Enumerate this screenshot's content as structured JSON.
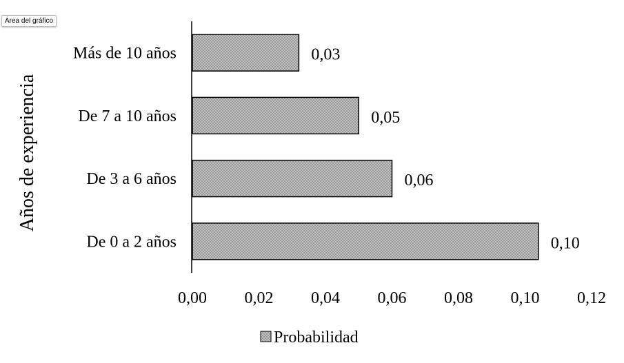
{
  "tooltip": {
    "label": "Área del gráfico"
  },
  "chart_data": {
    "type": "bar",
    "orientation": "horizontal",
    "categories": [
      "De 0 a 2 años",
      "De 3 a 6 años",
      "De 7 a 10 años",
      "Más de 10 años"
    ],
    "series": [
      {
        "name": "Probabilidad",
        "values": [
          0.104,
          0.06,
          0.05,
          0.032
        ]
      }
    ],
    "data_labels": [
      "0,10",
      "0,06",
      "0,05",
      "0,03"
    ],
    "xlabel": "",
    "ylabel": "Años de experiencia",
    "xlim": [
      0,
      0.12
    ],
    "xticks": [
      0,
      0.02,
      0.04,
      0.06,
      0.08,
      0.1,
      0.12
    ],
    "xtick_labels": [
      "0,00",
      "0,02",
      "0,04",
      "0,06",
      "0,08",
      "0,10",
      "0,12"
    ],
    "grid": false,
    "legend": {
      "position": "bottom",
      "entries": [
        "Probabilidad"
      ]
    },
    "colors": {
      "bar_fill": "#9a9a9a",
      "bar_pattern_dot": "#d8d8d8",
      "bar_stroke": "#000000"
    }
  }
}
